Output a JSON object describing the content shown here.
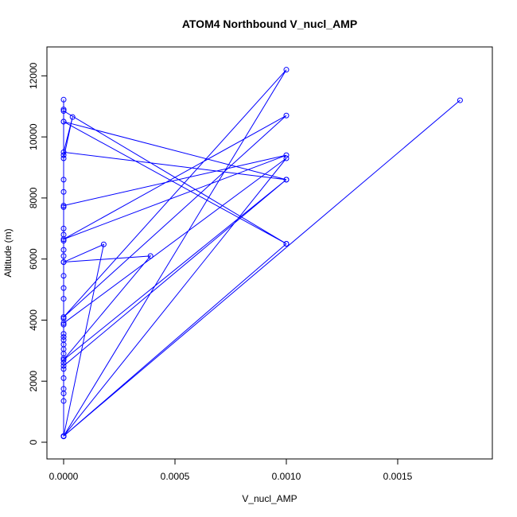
{
  "chart_data": {
    "type": "line",
    "title": "ATOM4 Northbound V_nucl_AMP",
    "xlabel": "V_nucl_AMP",
    "ylabel": "Altitude (m)",
    "xlim": [
      0,
      0.00185
    ],
    "ylim": [
      0,
      12400
    ],
    "x_ticks": [
      0,
      0.0005,
      0.001,
      0.0015
    ],
    "x_tick_labels": [
      "0.0000",
      "0.0005",
      "0.0010",
      "0.0015"
    ],
    "y_ticks": [
      0,
      2000,
      4000,
      6000,
      8000,
      10000,
      12000
    ],
    "y_tick_labels": [
      "0",
      "2000",
      "4000",
      "6000",
      "8000",
      "10000",
      "12000"
    ],
    "grid": false,
    "line_color": "#0000ff",
    "marker": "open-circle",
    "series": [
      {
        "points": [
          [
            0,
            190
          ],
          [
            0,
            11220
          ],
          [
            0,
            10900
          ],
          [
            0,
            10500
          ],
          [
            0,
            9400
          ],
          [
            0,
            8600
          ],
          [
            0,
            8200
          ],
          [
            0,
            7700
          ],
          [
            0,
            7000
          ],
          [
            0,
            6800
          ],
          [
            0,
            6600
          ],
          [
            0,
            6300
          ],
          [
            0,
            6100
          ],
          [
            0,
            5900
          ],
          [
            0,
            5450
          ],
          [
            0,
            5050
          ],
          [
            0,
            4700
          ],
          [
            0,
            4050
          ],
          [
            0,
            3850
          ],
          [
            0,
            3550
          ],
          [
            0,
            3450
          ],
          [
            0,
            3350
          ],
          [
            0,
            3200
          ],
          [
            0,
            3050
          ],
          [
            0,
            2900
          ],
          [
            0,
            2750
          ],
          [
            0,
            2600
          ],
          [
            0,
            2400
          ],
          [
            0,
            2100
          ],
          [
            0,
            1750
          ],
          [
            0,
            1600
          ],
          [
            0,
            1350
          ],
          [
            0,
            200
          ],
          [
            0,
            10850
          ],
          [
            0.001,
            6500
          ],
          [
            0,
            10500
          ],
          [
            0.001,
            8600
          ],
          [
            0,
            9500
          ],
          [
            4e-05,
            10650
          ],
          [
            0,
            9300
          ],
          [
            0,
            7750
          ],
          [
            0.001,
            9400
          ],
          [
            0,
            6650
          ],
          [
            0.001,
            10700
          ],
          [
            0,
            4100
          ],
          [
            0.001,
            12200
          ],
          [
            0,
            200
          ],
          [
            0.00018,
            6480
          ],
          [
            0,
            5900
          ],
          [
            0.00039,
            6100
          ],
          [
            0,
            2700
          ],
          [
            0.001,
            8600
          ],
          [
            0,
            2500
          ],
          [
            0,
            3900
          ],
          [
            0.001,
            9300
          ],
          [
            0,
            200
          ],
          [
            0.00178,
            11200
          ],
          [
            0,
            200
          ],
          [
            0.001,
            6500
          ],
          [
            0,
            200
          ]
        ]
      }
    ]
  }
}
